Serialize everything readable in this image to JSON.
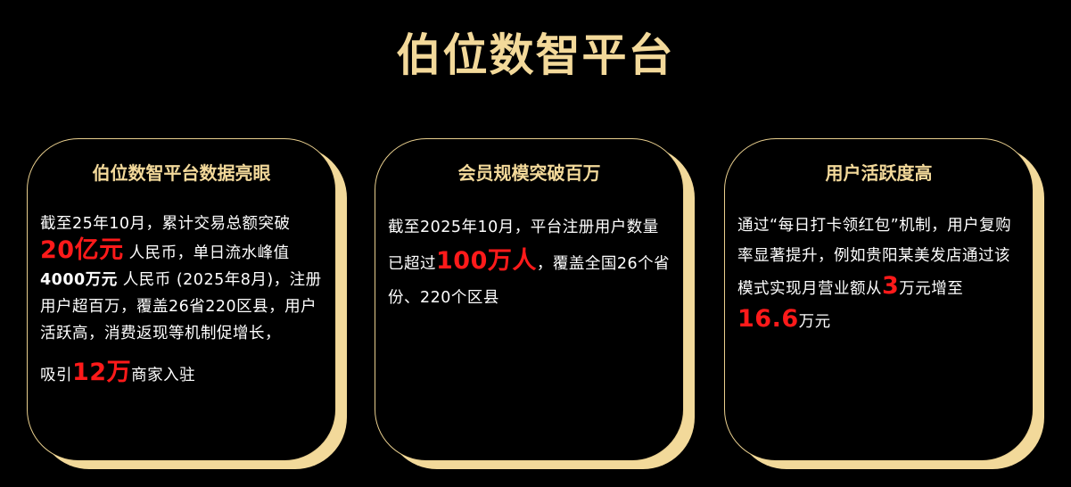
{
  "title": "伯位数智平台",
  "cards": [
    {
      "title": "伯位数智平台数据亮眼",
      "p1a": "截至25年10月，累计交易总额突破 ",
      "p1b": "20亿元",
      "p1c": " 人民币，单日流水峰值",
      "p1d": "4000万元",
      "p1e": " 人民币 (2025年8月)，注册用户超百万，覆盖26省220区县，用户活跃高，消费返现等机制促增长，",
      "p2a": "吸引",
      "p2b": "12万",
      "p2c": "商家入驻"
    },
    {
      "title": "会员规模突破百万",
      "a": "截至2025年10月，平台注册用户数量已超过",
      "b": "100万人",
      "c": "，覆盖全国26个省份、220个区县"
    },
    {
      "title": "用户活跃度高",
      "a": "通过“每日打卡领红包”机制，用户复购率显著提升，例如贵阳某美发店通过该模式实现月营业额从",
      "b": "3",
      "c": "万元增至",
      "d": "16.6",
      "e": "万元"
    }
  ],
  "colors": {
    "gold": "#f3d99a",
    "highlight": "#ff1a1a",
    "background": "#000000"
  }
}
